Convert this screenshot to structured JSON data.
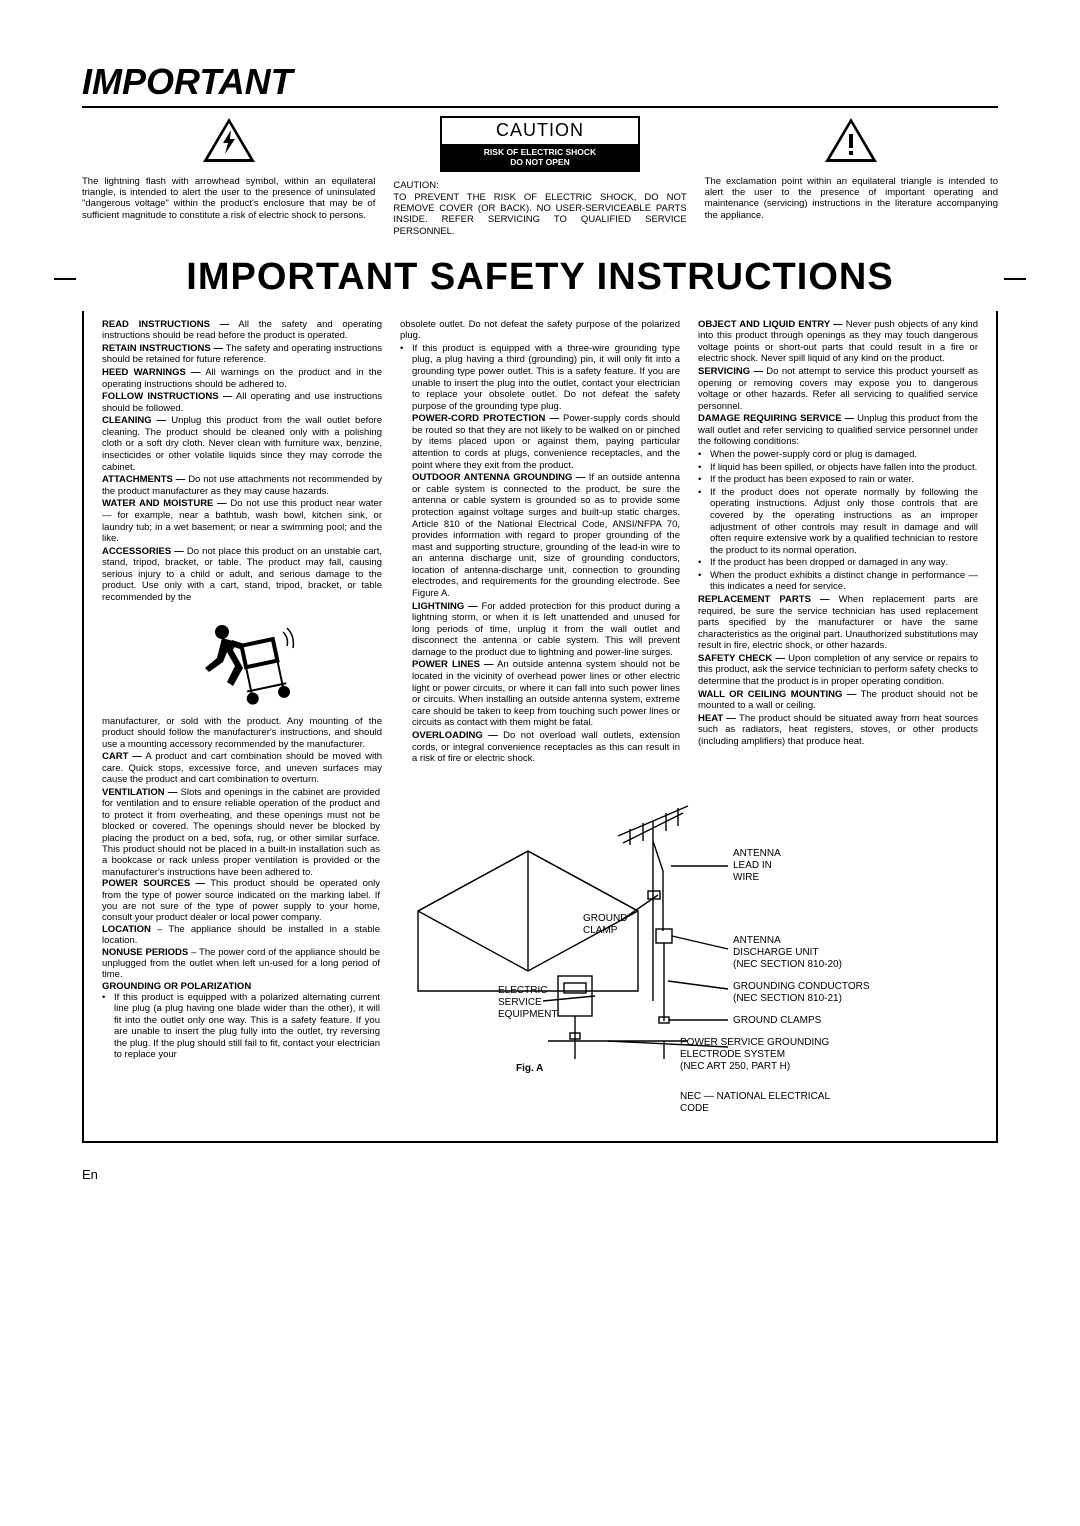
{
  "title_important": "IMPORTANT",
  "caution_box": {
    "title": "CAUTION",
    "line1": "RISK OF ELECTRIC SHOCK",
    "line2": "DO NOT OPEN"
  },
  "top": {
    "left": "The lightning flash with arrowhead symbol, within an equilateral triangle, is intended to alert the user to the presence of uninsulated \"dangerous voltage\" within the product's enclosure that may be of sufficient magnitude to constitute a risk of electric shock to persons.",
    "center_head": "CAUTION:",
    "center": "TO PREVENT THE RISK OF ELECTRIC SHOCK, DO NOT REMOVE COVER (OR BACK). NO USER-SERVICEABLE PARTS INSIDE. REFER SERVICING TO QUALIFIED SERVICE PERSONNEL.",
    "right": "The exclamation point within an equilateral triangle is intended to alert the user to the presence of important operating and maintenance (servicing) instructions in the literature accompanying the appliance."
  },
  "safety_title": "IMPORTANT SAFETY INSTRUCTIONS",
  "items": [
    {
      "t": "READ INSTRUCTIONS —",
      "b": "All the safety and operating instructions should be read before the product is operated."
    },
    {
      "t": "RETAIN INSTRUCTIONS —",
      "b": "The safety and operating instructions should be retained for future reference."
    },
    {
      "t": "HEED WARNINGS —",
      "b": "All warnings on the product and in the operating instructions should be adhered to."
    },
    {
      "t": "FOLLOW INSTRUCTIONS —",
      "b": "All operating and use instructions should be followed."
    },
    {
      "t": "CLEANING —",
      "b": "Unplug this product from the wall outlet before cleaning. The product should be cleaned only with a polishing cloth or a soft dry cloth. Never clean with furniture wax, benzine, insecticides or other volatile liquids since they may corrode the cabinet."
    },
    {
      "t": "ATTACHMENTS —",
      "b": "Do not use attachments not recommended by the product manufacturer as they may cause hazards."
    },
    {
      "t": "WATER AND MOISTURE —",
      "b": "Do not use this product near water — for example, near a bathtub, wash bowl, kitchen sink, or laundry tub; in a wet basement; or near a swimming pool; and the like."
    },
    {
      "t": "ACCESSORIES —",
      "b": "Do not place this product on an unstable cart, stand, tripod, bracket, or table. The product may fall, causing serious injury to a child or adult, and serious damage to the product. Use only with a cart, stand, tripod, bracket, or table recommended by the"
    }
  ],
  "after_cart": "manufacturer, or sold with the product. Any mounting of the product should follow the manufacturer's instructions, and should use a mounting accessory recommended by the manufacturer.",
  "items2": [
    {
      "t": "CART —",
      "b": "A product and cart combination should be moved with care. Quick stops, excessive force, and uneven surfaces may cause the product and cart combination to overturn."
    }
  ],
  "items_bottom_left": [
    {
      "t": "VENTILATION —",
      "b": "Slots and openings in the cabinet are provided for ventilation and to ensure reliable operation of the product and to protect it from overheating, and these openings must not be blocked or covered. The openings should never be blocked by placing the product on a bed, sofa, rug, or other similar surface. This product should not be placed in a built-in installation such as a bookcase or rack unless proper ventilation is provided or the manufacturer's instructions have been adhered to."
    },
    {
      "t": "POWER SOURCES —",
      "b": "This product should be operated only from the type of power source indicated on the marking label. If you are not sure of the type of power supply to your home, consult your product dealer or local power company."
    },
    {
      "t": "LOCATION",
      "b": "– The appliance should be installed in a stable location."
    },
    {
      "t": "NONUSE PERIODS",
      "b": "– The power cord of the appliance should be unplugged from the outlet when left un-used for a long period of time."
    },
    {
      "t": "GROUNDING OR POLARIZATION",
      "b": ""
    }
  ],
  "grounding_bullets": [
    "If this product is equipped with a polarized alternating current line plug (a plug having one blade wider than the other), it will fit into the outlet only one way. This is a safety feature. If you are unable to insert the plug fully into the outlet, try reversing the plug. If the plug should still fail to fit, contact your electrician to replace your"
  ],
  "col2_start": "obsolete outlet. Do not defeat the safety purpose of the polarized plug.",
  "col2_bullet": "If this product is equipped with a three-wire grounding type plug, a plug having a third (grounding) pin, it will only fit into a grounding type power outlet. This is a safety feature. If you are unable to insert the plug into the outlet, contact your electrician to replace your obsolete outlet. Do not defeat the safety purpose of the grounding type plug.",
  "items3": [
    {
      "t": "POWER-CORD PROTECTION —",
      "b": "Power-supply cords should be routed so that they are not likely to be walked on or pinched by items placed upon or against them, paying particular attention to cords at plugs, convenience receptacles, and the point where they exit from the product."
    },
    {
      "t": "OUTDOOR ANTENNA GROUNDING —",
      "b": "If an outside antenna or cable system is connected to the product, be sure the antenna or cable system is grounded so as to provide some protection against voltage surges and built-up static charges. Article 810 of the National Electrical Code, ANSI/NFPA 70, provides information with regard to proper grounding of the mast and supporting structure, grounding of the lead-in wire to an antenna discharge unit, size of grounding conductors, location of antenna-discharge unit, connection to grounding electrodes, and requirements for the grounding electrode. See Figure A."
    },
    {
      "t": "LIGHTNING —",
      "b": "For added protection for this product during a lightning storm, or when it is left unattended and unused for long periods of time, unplug it from the wall outlet and disconnect the antenna or cable system. This will prevent damage to the product due to lightning and power-line surges."
    },
    {
      "t": "POWER LINES —",
      "b": "An outside antenna system should not be located in the vicinity of overhead power lines or other electric light or power circuits, or where it can fall into such power lines or circuits. When installing an outside antenna system, extreme care should be taken to keep from touching such power lines or circuits as contact with them might be fatal."
    },
    {
      "t": "OVERLOADING —",
      "b": "Do not overload wall outlets, extension cords, or integral convenience receptacles as this can result in a risk of fire or electric shock."
    }
  ],
  "items4": [
    {
      "t": "OBJECT AND LIQUID ENTRY —",
      "b": "Never push objects of any kind into this product through openings as they may touch dangerous voltage points or short-out parts that could result in a fire or electric shock. Never spill liquid of any kind on the product."
    },
    {
      "t": "SERVICING —",
      "b": "Do not attempt to service this product yourself as opening or removing covers may expose you to dangerous voltage or other hazards. Refer all servicing to qualified service personnel."
    },
    {
      "t": "DAMAGE REQUIRING SERVICE —",
      "b": "Unplug this product from the wall outlet and refer servicing to qualified service personnel under the following conditions:"
    }
  ],
  "service_bullets": [
    "When the power-supply cord or plug is damaged.",
    "If liquid has been spilled, or objects have fallen into the product.",
    "If the product has been exposed to rain or water.",
    "If the product does not operate normally by following the operating instructions. Adjust only those controls that are covered by the operating instructions as an improper adjustment of other controls may result in damage and will often require extensive work by a qualified technician to restore the product to its normal operation.",
    "If the product has been dropped or damaged in any way.",
    "When the product exhibits a distinct change in performance — this indicates a need for service."
  ],
  "items5": [
    {
      "t": "REPLACEMENT PARTS —",
      "b": "When replacement parts are required, be sure the service technician has used replacement parts specified by the manufacturer or have the same characteristics as the original part. Unauthorized substitutions may result in fire, electric shock, or other hazards."
    },
    {
      "t": "SAFETY CHECK —",
      "b": "Upon completion of any service or repairs to this product, ask the service technician to perform safety checks to determine that the product is in proper operating condition."
    },
    {
      "t": "WALL OR CEILING MOUNTING —",
      "b": "The product should not be mounted to a wall or ceiling."
    },
    {
      "t": "HEAT —",
      "b": "The product should be situated away from heat sources such as radiators, heat registers, stoves, or other products (including amplifiers) that produce heat."
    }
  ],
  "figA": {
    "caption": "Fig. A",
    "labels": {
      "antenna_lead": "ANTENNA\nLEAD IN\nWIRE",
      "ground_clamp": "GROUND\nCLAMP",
      "discharge": "ANTENNA\nDISCHARGE UNIT\n(NEC SECTION 810-20)",
      "conductors": "GROUNDING CONDUCTORS\n(NEC SECTION 810-21)",
      "ground_clamps": "GROUND CLAMPS",
      "electric": "ELECTRIC\nSERVICE\nEQUIPMENT",
      "power_service": "POWER SERVICE GROUNDING\nELECTRODE SYSTEM\n(NEC ART 250, PART H)",
      "nec": "NEC — NATIONAL ELECTRICAL\nCODE"
    }
  },
  "en": "En"
}
